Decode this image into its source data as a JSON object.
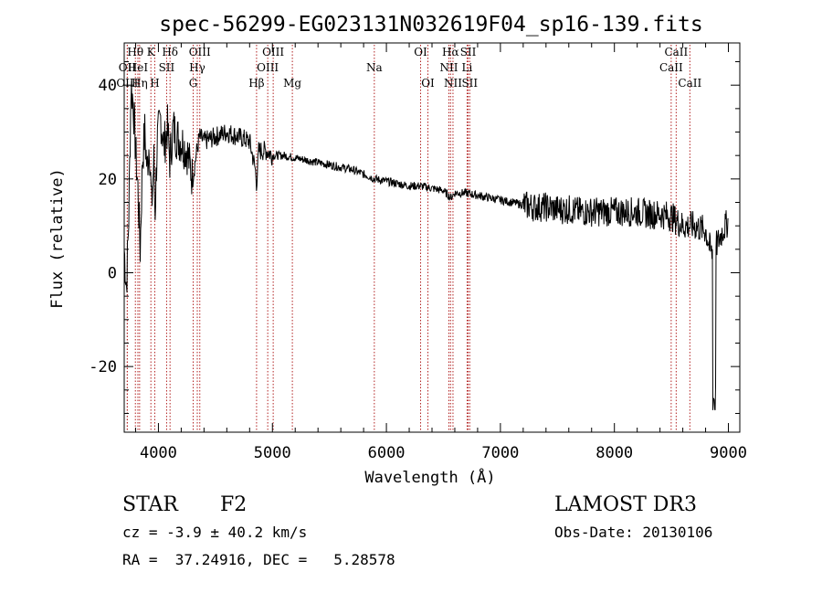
{
  "chart_data": {
    "type": "line",
    "title": "spec-56299-EG023131N032619F04_sp16-139.fits",
    "xlabel": "Wavelength (Å)",
    "ylabel": "Flux (relative)",
    "xlim": [
      3700,
      9100
    ],
    "ylim": [
      -34,
      49
    ],
    "xticks": [
      4000,
      5000,
      6000,
      7000,
      8000,
      9000
    ],
    "yticks": [
      -20,
      0,
      20,
      40
    ],
    "grid": false,
    "lines": [
      {
        "name": "OII",
        "wavelength": 3727,
        "row": 1
      },
      {
        "name": "OIII",
        "wavelength": 3727,
        "row": 2
      },
      {
        "name": "Hθ",
        "wavelength": 3798,
        "row": 0
      },
      {
        "name": "HeI",
        "wavelength": 3820,
        "row": 1
      },
      {
        "name": "Hη",
        "wavelength": 3835,
        "row": 2
      },
      {
        "name": "K",
        "wavelength": 3934,
        "row": 0
      },
      {
        "name": "H",
        "wavelength": 3968,
        "row": 2
      },
      {
        "name": "SII",
        "wavelength": 4072,
        "row": 1
      },
      {
        "name": "Hδ",
        "wavelength": 4102,
        "row": 0
      },
      {
        "name": "OIII",
        "wavelength": 4363,
        "row": 0
      },
      {
        "name": "Hγ",
        "wavelength": 4341,
        "row": 1
      },
      {
        "name": "G",
        "wavelength": 4305,
        "row": 2
      },
      {
        "name": "Hβ",
        "wavelength": 4861,
        "row": 2
      },
      {
        "name": "OIII",
        "wavelength": 4959,
        "row": 1
      },
      {
        "name": "OIII",
        "wavelength": 5007,
        "row": 0
      },
      {
        "name": "Mg",
        "wavelength": 5175,
        "row": 2
      },
      {
        "name": "Na",
        "wavelength": 5894,
        "row": 1
      },
      {
        "name": "OI",
        "wavelength": 6300,
        "row": 0
      },
      {
        "name": "OI",
        "wavelength": 6364,
        "row": 2
      },
      {
        "name": "Hα",
        "wavelength": 6563,
        "row": 0
      },
      {
        "name": "NII",
        "wavelength": 6548,
        "row": 1
      },
      {
        "name": "NII",
        "wavelength": 6584,
        "row": 2
      },
      {
        "name": "SII",
        "wavelength": 6717,
        "row": 0
      },
      {
        "name": "Li",
        "wavelength": 6708,
        "row": 1
      },
      {
        "name": "SII",
        "wavelength": 6731,
        "row": 2
      },
      {
        "name": "CaII",
        "wavelength": 8542,
        "row": 0
      },
      {
        "name": "CaII",
        "wavelength": 8498,
        "row": 1
      },
      {
        "name": "CaII",
        "wavelength": 8662,
        "row": 2
      }
    ],
    "spectrum": [
      [
        3700,
        5
      ],
      [
        3720,
        -3
      ],
      [
        3740,
        12
      ],
      [
        3760,
        40
      ],
      [
        3780,
        36
      ],
      [
        3800,
        26
      ],
      [
        3820,
        18
      ],
      [
        3840,
        5
      ],
      [
        3860,
        24
      ],
      [
        3880,
        30
      ],
      [
        3900,
        22
      ],
      [
        3920,
        28
      ],
      [
        3940,
        14
      ],
      [
        3960,
        24
      ],
      [
        3970,
        12
      ],
      [
        3990,
        28
      ],
      [
        4020,
        33
      ],
      [
        4050,
        27
      ],
      [
        4080,
        31
      ],
      [
        4100,
        24
      ],
      [
        4130,
        31
      ],
      [
        4160,
        29
      ],
      [
        4200,
        28
      ],
      [
        4250,
        26
      ],
      [
        4300,
        20
      ],
      [
        4330,
        25
      ],
      [
        4360,
        29
      ],
      [
        4400,
        28
      ],
      [
        4500,
        29
      ],
      [
        4600,
        30
      ],
      [
        4700,
        29
      ],
      [
        4800,
        28
      ],
      [
        4850,
        22
      ],
      [
        4861,
        19
      ],
      [
        4880,
        26
      ],
      [
        4950,
        26
      ],
      [
        5000,
        25
      ],
      [
        5100,
        25
      ],
      [
        5200,
        24.5
      ],
      [
        5300,
        24
      ],
      [
        5400,
        23.5
      ],
      [
        5500,
        23
      ],
      [
        5600,
        22.5
      ],
      [
        5700,
        22
      ],
      [
        5800,
        21
      ],
      [
        5900,
        20
      ],
      [
        6000,
        19.5
      ],
      [
        6100,
        19
      ],
      [
        6200,
        18.5
      ],
      [
        6300,
        18.5
      ],
      [
        6400,
        18
      ],
      [
        6500,
        17.5
      ],
      [
        6563,
        16
      ],
      [
        6600,
        17
      ],
      [
        6700,
        17
      ],
      [
        6800,
        16.5
      ],
      [
        6900,
        16
      ],
      [
        7000,
        15.5
      ],
      [
        7100,
        15
      ],
      [
        7200,
        14.5
      ],
      [
        7300,
        14
      ],
      [
        7400,
        14
      ],
      [
        7500,
        13.5
      ],
      [
        7600,
        13.5
      ],
      [
        7700,
        13
      ],
      [
        7800,
        13
      ],
      [
        7900,
        13
      ],
      [
        8000,
        13
      ],
      [
        8100,
        13
      ],
      [
        8200,
        13
      ],
      [
        8300,
        12.5
      ],
      [
        8400,
        12.5
      ],
      [
        8500,
        12
      ],
      [
        8600,
        10
      ],
      [
        8700,
        10
      ],
      [
        8800,
        9
      ],
      [
        8850,
        4
      ],
      [
        8900,
        6
      ],
      [
        8950,
        9
      ],
      [
        9000,
        11
      ]
    ]
  },
  "info": {
    "object_class": "STAR",
    "subclass": "F2",
    "survey": "LAMOST DR3",
    "redshift": "cz = -3.9 ± 40.2 km/s",
    "obs_date": "Obs-Date: 20130106",
    "coords": "RA =  37.24916, DEC =   5.28578"
  }
}
